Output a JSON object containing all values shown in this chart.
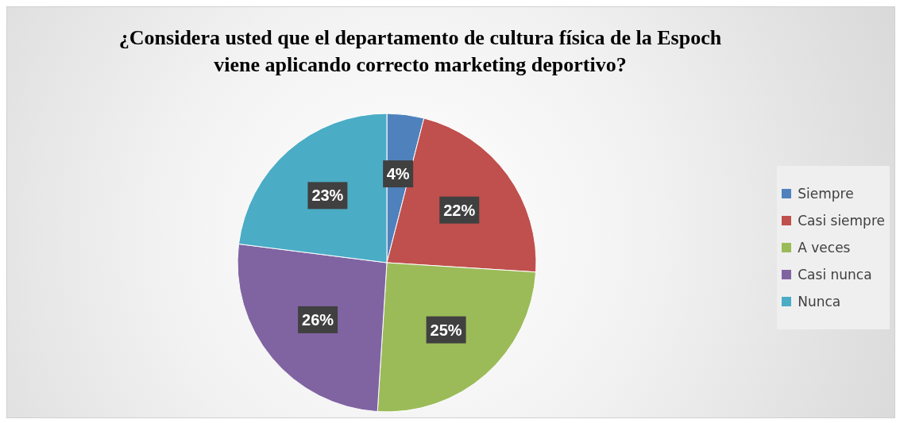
{
  "chart_data": {
    "type": "pie",
    "title": "¿Considera usted que el departamento de cultura física de la Espoch viene aplicando correcto marketing deportivo?",
    "categories": [
      "Siempre",
      "Casi siempre",
      "A veces",
      "Casi nunca",
      "Nunca"
    ],
    "values": [
      4,
      22,
      25,
      26,
      23
    ],
    "value_labels": [
      "4%",
      "22%",
      "25%",
      "26%",
      "23%"
    ],
    "colors": [
      "#4f81bd",
      "#c0504d",
      "#9bbb59",
      "#8064a2",
      "#4bacc6"
    ],
    "legend": "right"
  }
}
